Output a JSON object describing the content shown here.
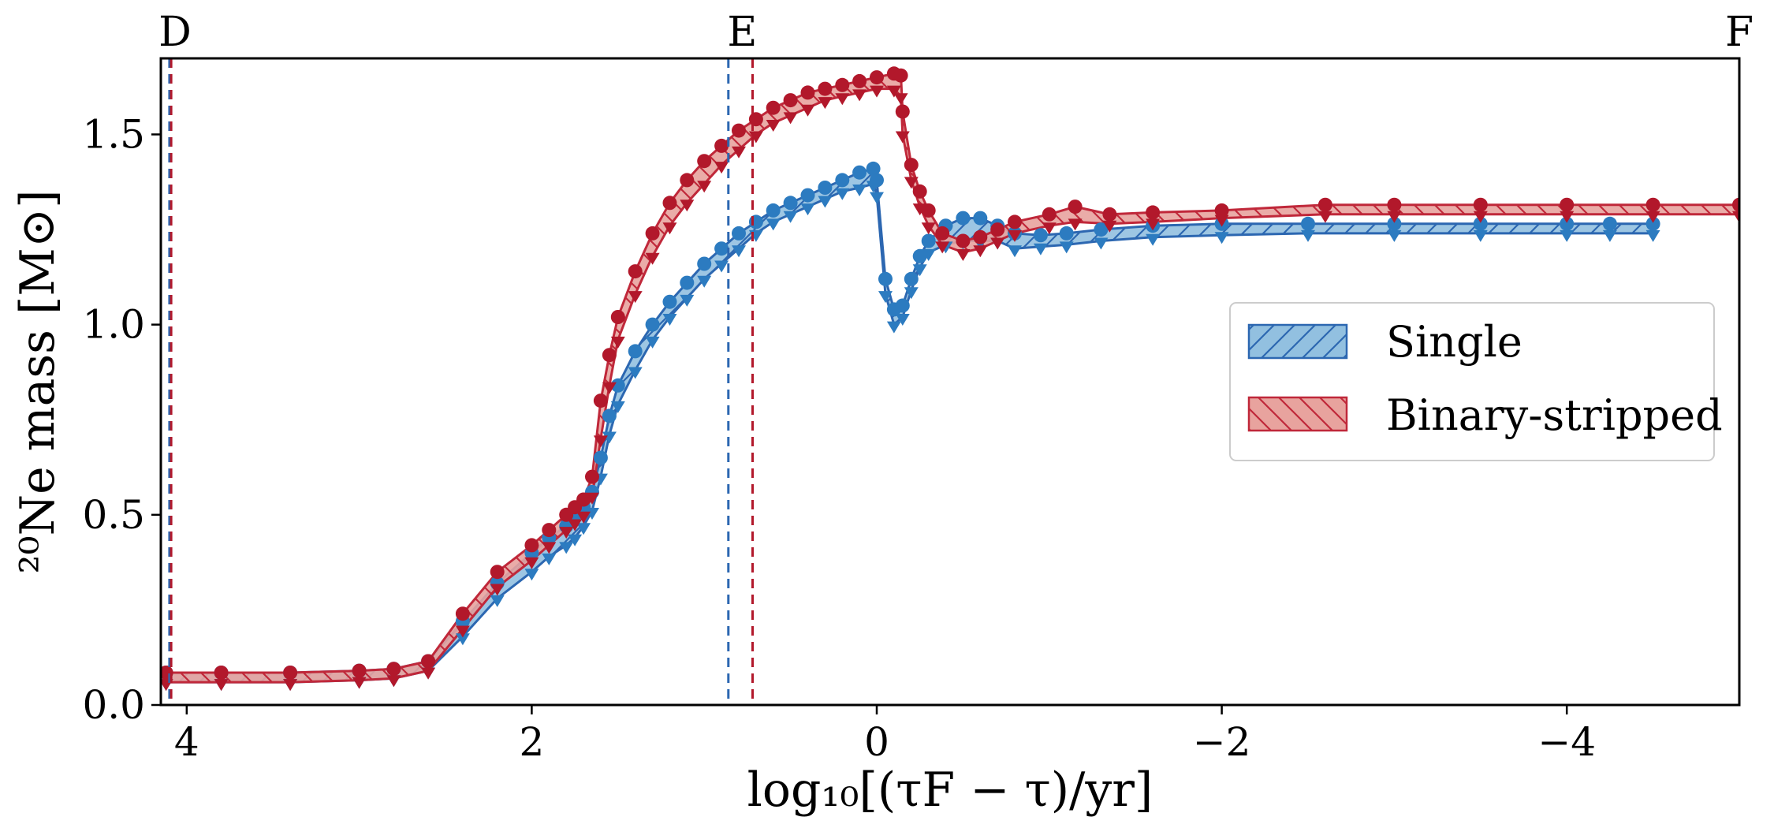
{
  "chart_data": {
    "type": "area",
    "xlabel": "log₁₀[(τF − τ)/yr]",
    "ylabel": "²⁰Ne mass [M⊙]",
    "xlim": [
      4.15,
      -5.0
    ],
    "ylim": [
      0.0,
      1.7
    ],
    "xticks": [
      4,
      2,
      0,
      -2,
      -4
    ],
    "xtick_labels": [
      "4",
      "2",
      "0",
      "−2",
      "−4"
    ],
    "yticks": [
      0.0,
      0.5,
      1.0,
      1.5
    ],
    "ytick_labels": [
      "0.0",
      "0.5",
      "1.0",
      "1.5"
    ],
    "phase_labels": [
      {
        "label": "D",
        "x": 4.1
      },
      {
        "label": "E",
        "x": 0.78
      },
      {
        "label": "F",
        "x": -5.0
      }
    ],
    "vlines": [
      {
        "x": 4.1,
        "color": "#2c67b1"
      },
      {
        "x": 4.09,
        "color": "#b2182b"
      },
      {
        "x": 0.86,
        "color": "#2c67b1"
      },
      {
        "x": 0.72,
        "color": "#b2182b"
      }
    ],
    "legend": {
      "position": "center-right",
      "entries": [
        "Single",
        "Binary-stripped"
      ]
    },
    "series": [
      {
        "name": "Single",
        "fill_color": "#92c0e0",
        "edge_color": "#2c67b1",
        "marker_color": "#2c7bc0",
        "hatch": "forward",
        "x": [
          4.12,
          3.8,
          3.4,
          3.0,
          2.8,
          2.6,
          2.4,
          2.2,
          2.0,
          1.9,
          1.8,
          1.75,
          1.7,
          1.65,
          1.6,
          1.55,
          1.5,
          1.4,
          1.3,
          1.2,
          1.1,
          1.0,
          0.9,
          0.8,
          0.7,
          0.6,
          0.5,
          0.4,
          0.3,
          0.2,
          0.1,
          0.02,
          0.0,
          -0.05,
          -0.1,
          -0.15,
          -0.2,
          -0.25,
          -0.3,
          -0.4,
          -0.5,
          -0.6,
          -0.7,
          -0.8,
          -0.95,
          -1.1,
          -1.3,
          -1.6,
          -2.0,
          -2.5,
          -3.0,
          -3.5,
          -4.0,
          -4.25,
          -4.5
        ],
        "upper": [
          0.085,
          0.085,
          0.085,
          0.09,
          0.095,
          0.115,
          0.22,
          0.32,
          0.4,
          0.44,
          0.47,
          0.5,
          0.52,
          0.56,
          0.65,
          0.76,
          0.84,
          0.93,
          1.0,
          1.06,
          1.11,
          1.16,
          1.2,
          1.24,
          1.27,
          1.3,
          1.32,
          1.34,
          1.36,
          1.38,
          1.4,
          1.41,
          1.38,
          1.12,
          1.04,
          1.05,
          1.12,
          1.18,
          1.22,
          1.26,
          1.28,
          1.28,
          1.26,
          1.24,
          1.235,
          1.24,
          1.25,
          1.26,
          1.265,
          1.265,
          1.265,
          1.265,
          1.265,
          1.265,
          1.265
        ],
        "lower": [
          0.06,
          0.06,
          0.06,
          0.065,
          0.07,
          0.09,
          0.18,
          0.28,
          0.35,
          0.39,
          0.42,
          0.44,
          0.47,
          0.51,
          0.6,
          0.71,
          0.79,
          0.88,
          0.96,
          1.02,
          1.07,
          1.12,
          1.16,
          1.2,
          1.24,
          1.27,
          1.29,
          1.31,
          1.33,
          1.35,
          1.36,
          1.37,
          1.34,
          1.08,
          1.0,
          1.02,
          1.09,
          1.15,
          1.19,
          1.21,
          1.22,
          1.22,
          1.22,
          1.2,
          1.205,
          1.21,
          1.22,
          1.23,
          1.235,
          1.24,
          1.24,
          1.24,
          1.24,
          1.24,
          1.24
        ]
      },
      {
        "name": "Binary-stripped",
        "fill_color": "#e8a39e",
        "edge_color": "#c0283a",
        "marker_color": "#b2182b",
        "hatch": "backward",
        "x": [
          4.12,
          3.8,
          3.4,
          3.0,
          2.8,
          2.6,
          2.4,
          2.2,
          2.0,
          1.9,
          1.8,
          1.75,
          1.7,
          1.65,
          1.6,
          1.55,
          1.5,
          1.4,
          1.3,
          1.2,
          1.1,
          1.0,
          0.9,
          0.8,
          0.7,
          0.6,
          0.5,
          0.4,
          0.3,
          0.2,
          0.1,
          0.0,
          -0.1,
          -0.14,
          -0.15,
          -0.2,
          -0.25,
          -0.3,
          -0.38,
          -0.5,
          -0.6,
          -0.7,
          -0.8,
          -1.0,
          -1.15,
          -1.35,
          -1.6,
          -2.0,
          -2.6,
          -3.0,
          -3.5,
          -4.0,
          -4.5,
          -5.0
        ],
        "upper": [
          0.085,
          0.085,
          0.085,
          0.09,
          0.095,
          0.115,
          0.24,
          0.35,
          0.42,
          0.46,
          0.5,
          0.52,
          0.54,
          0.6,
          0.8,
          0.92,
          1.02,
          1.14,
          1.24,
          1.32,
          1.38,
          1.43,
          1.47,
          1.51,
          1.54,
          1.57,
          1.59,
          1.61,
          1.62,
          1.63,
          1.64,
          1.65,
          1.66,
          1.655,
          1.56,
          1.42,
          1.35,
          1.3,
          1.24,
          1.22,
          1.23,
          1.25,
          1.27,
          1.29,
          1.31,
          1.29,
          1.295,
          1.3,
          1.315,
          1.315,
          1.315,
          1.315,
          1.315,
          1.315
        ],
        "lower": [
          0.06,
          0.06,
          0.06,
          0.065,
          0.07,
          0.09,
          0.2,
          0.31,
          0.38,
          0.42,
          0.46,
          0.48,
          0.5,
          0.55,
          0.7,
          0.84,
          0.96,
          1.08,
          1.18,
          1.26,
          1.32,
          1.37,
          1.42,
          1.46,
          1.5,
          1.53,
          1.55,
          1.57,
          1.59,
          1.6,
          1.61,
          1.62,
          1.62,
          1.6,
          1.5,
          1.38,
          1.31,
          1.26,
          1.21,
          1.19,
          1.2,
          1.22,
          1.24,
          1.26,
          1.27,
          1.265,
          1.27,
          1.28,
          1.29,
          1.29,
          1.29,
          1.29,
          1.29,
          1.29
        ]
      }
    ]
  }
}
